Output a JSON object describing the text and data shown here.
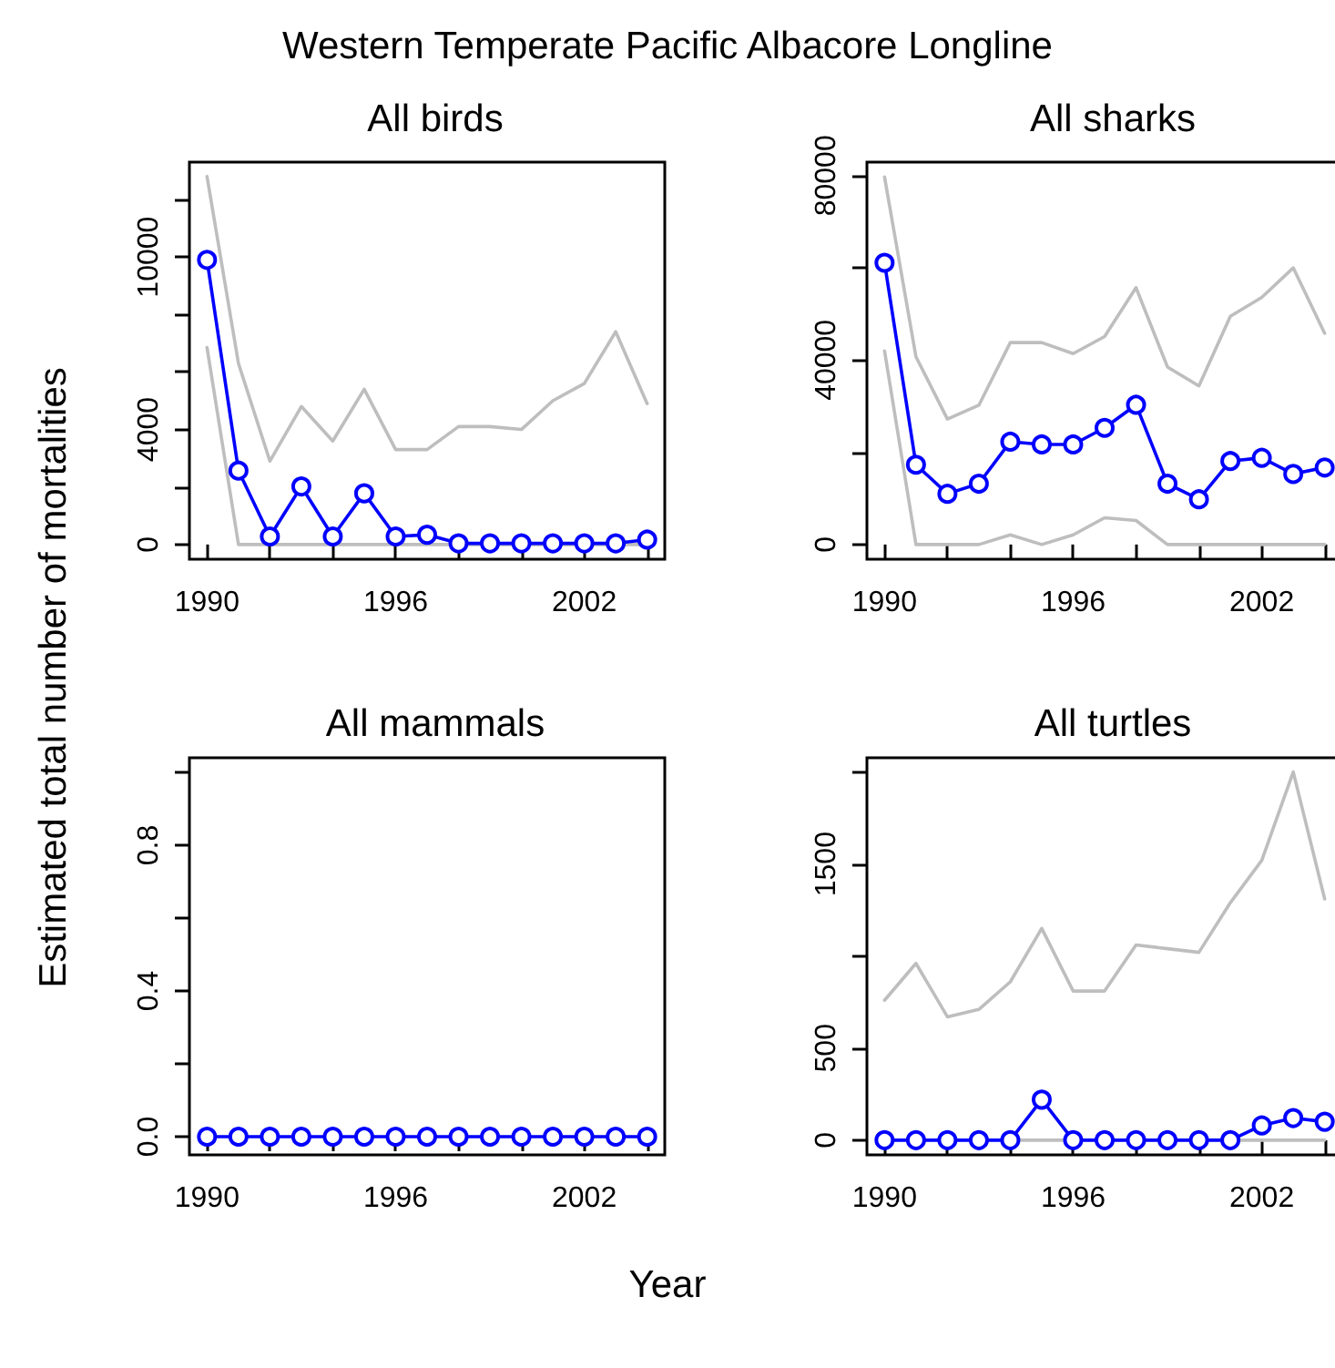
{
  "chart_data": [
    {
      "type": "line",
      "title": "All birds",
      "ylabel": "Estimated total number of mortalities",
      "annotations": [
        "Western Temperate Pacific Albacore Longline"
      ],
      "x": [
        1990,
        1991,
        1992,
        1993,
        1994,
        1995,
        1996,
        1997,
        1998,
        1999,
        2000,
        2001,
        2002,
        2003,
        2004
      ],
      "xlim": [
        1989.44,
        2004.56
      ],
      "xticks": [
        1990,
        {
          "value": 1992,
          "label": null
        },
        {
          "value": 1994,
          "label": null
        },
        1996,
        {
          "value": 1998,
          "label": null
        },
        {
          "value": 2000,
          "label": null
        },
        2002,
        {
          "value": 2004,
          "label": null
        }
      ],
      "ylim": [
        -512,
        13300
      ],
      "yticks": [
        0,
        {
          "value": 2000,
          "label": null
        },
        4000,
        {
          "value": 6000,
          "label": null
        },
        {
          "value": 8000,
          "label": null
        },
        10000,
        {
          "value": 12000,
          "label": null
        }
      ],
      "series": [
        {
          "color": "#bebebe",
          "marker": "none",
          "values": [
            12800,
            6300,
            2900,
            4800,
            3600,
            5400,
            3300,
            3300,
            4100,
            4100,
            4000,
            5000,
            5600,
            7400,
            4900
          ]
        },
        {
          "color": "#bebebe",
          "marker": "none",
          "values": [
            6850,
            0,
            0,
            0,
            0,
            0,
            0,
            0,
            0,
            0,
            0,
            0,
            0,
            0,
            0
          ]
        },
        {
          "color": "#0000ff",
          "marker": "circle",
          "values": [
            9900,
            2570,
            280,
            2020,
            280,
            1780,
            280,
            340,
            40,
            40,
            40,
            40,
            40,
            40,
            170
          ]
        }
      ]
    },
    {
      "type": "line",
      "title": "All sharks",
      "x": [
        1990,
        1991,
        1992,
        1993,
        1994,
        1995,
        1996,
        1997,
        1998,
        1999,
        2000,
        2001,
        2002,
        2003,
        2004
      ],
      "xlim": [
        1989.44,
        2004.56
      ],
      "xticks": [
        1990,
        {
          "value": 1992,
          "label": null
        },
        {
          "value": 1994,
          "label": null
        },
        1996,
        {
          "value": 1998,
          "label": null
        },
        {
          "value": 2000,
          "label": null
        },
        2002,
        {
          "value": 2004,
          "label": null
        }
      ],
      "ylim": [
        -3190,
        82925
      ],
      "yticks": [
        0,
        {
          "value": 20000,
          "label": null
        },
        40000,
        {
          "value": 60000,
          "label": null
        },
        80000
      ],
      "series": [
        {
          "color": "#bebebe",
          "marker": "none",
          "values": [
            79700,
            40700,
            27200,
            30200,
            43800,
            43800,
            41400,
            45100,
            55700,
            38500,
            34400,
            49500,
            53600,
            60000,
            45800
          ]
        },
        {
          "color": "#bebebe",
          "marker": "none",
          "values": [
            42000,
            0,
            0,
            0,
            2100,
            0,
            2100,
            5800,
            5200,
            0,
            0,
            0,
            0,
            0,
            0
          ]
        },
        {
          "color": "#0000ff",
          "marker": "circle",
          "values": [
            61100,
            17300,
            11000,
            13200,
            22300,
            21700,
            21700,
            25300,
            30300,
            13200,
            9800,
            18100,
            18800,
            15300,
            16700
          ]
        }
      ]
    },
    {
      "type": "line",
      "title": "All mammals",
      "xlabel": "Year",
      "x": [
        1990,
        1991,
        1992,
        1993,
        1994,
        1995,
        1996,
        1997,
        1998,
        1999,
        2000,
        2001,
        2002,
        2003,
        2004
      ],
      "xlim": [
        1989.44,
        2004.56
      ],
      "xticks": [
        1990,
        {
          "value": 1992,
          "label": null
        },
        {
          "value": 1994,
          "label": null
        },
        1996,
        {
          "value": 1998,
          "label": null
        },
        {
          "value": 2000,
          "label": null
        },
        2002,
        {
          "value": 2004,
          "label": null
        }
      ],
      "ylim": [
        -0.05,
        1.04
      ],
      "yticks": [
        {
          "value": 0,
          "label": "0.0"
        },
        {
          "value": 0.2,
          "label": null
        },
        {
          "value": 0.4,
          "label": "0.4"
        },
        {
          "value": 0.6,
          "label": null
        },
        {
          "value": 0.8,
          "label": "0.8"
        },
        {
          "value": 1,
          "label": null
        }
      ],
      "series": [
        {
          "color": "#0000ff",
          "marker": "circle",
          "values": [
            0,
            0,
            0,
            0,
            0,
            0,
            0,
            0,
            0,
            0,
            0,
            0,
            0,
            0,
            0
          ]
        }
      ]
    },
    {
      "type": "line",
      "title": "All turtles",
      "x": [
        1990,
        1991,
        1992,
        1993,
        1994,
        1995,
        1996,
        1997,
        1998,
        1999,
        2000,
        2001,
        2002,
        2003,
        2004
      ],
      "xlim": [
        1989.44,
        2004.56
      ],
      "xticks": [
        1990,
        {
          "value": 1992,
          "label": null
        },
        {
          "value": 1994,
          "label": null
        },
        1996,
        {
          "value": 1998,
          "label": null
        },
        {
          "value": 2000,
          "label": null
        },
        2002,
        {
          "value": 2004,
          "label": null
        }
      ],
      "ylim": [
        -80,
        2077
      ],
      "yticks": [
        0,
        500,
        {
          "value": 1000,
          "label": null
        },
        1500,
        {
          "value": 2000,
          "label": null
        }
      ],
      "series": [
        {
          "color": "#bebebe",
          "marker": "none",
          "values": [
            760,
            960,
            670,
            710,
            860,
            1150,
            810,
            810,
            1060,
            1040,
            1020,
            1290,
            1520,
            2000,
            1310
          ]
        },
        {
          "color": "#bebebe",
          "marker": "none",
          "values": [
            null,
            null,
            null,
            null,
            0,
            0,
            0,
            null,
            null,
            null,
            null,
            0,
            0,
            0,
            0
          ]
        },
        {
          "color": "#0000ff",
          "marker": "circle",
          "values": [
            0,
            0,
            0,
            0,
            0,
            220,
            0,
            0,
            0,
            0,
            0,
            0,
            80,
            120,
            100
          ]
        }
      ]
    }
  ]
}
